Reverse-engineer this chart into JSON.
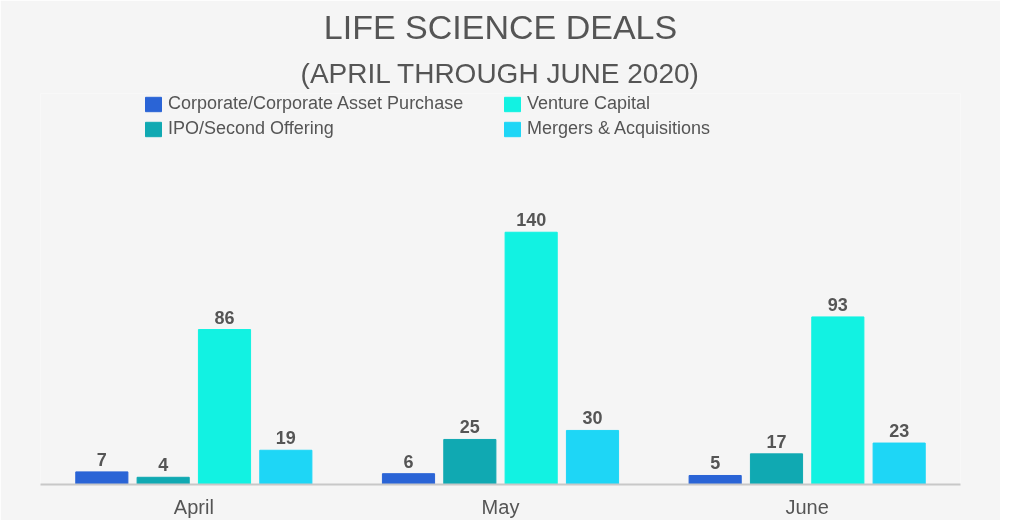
{
  "chart_data": {
    "type": "bar",
    "title": "LIFE SCIENCE DEALS",
    "subtitle": "(APRIL THROUGH JUNE 2020)",
    "categories": [
      "April",
      "May",
      "June"
    ],
    "series": [
      {
        "name": "Corporate/Corporate Asset Purchase",
        "color": "#2a64d6",
        "values": [
          7,
          6,
          5
        ]
      },
      {
        "name": "IPO/Second Offering",
        "color": "#10a9b2",
        "values": [
          4,
          25,
          17
        ]
      },
      {
        "name": "Venture Capital",
        "color": "#12f2e2",
        "values": [
          86,
          140,
          93
        ]
      },
      {
        "name": "Mergers & Acquisitions",
        "color": "#1ed6f6",
        "values": [
          19,
          30,
          23
        ]
      }
    ],
    "data_labels": true,
    "legend": "top"
  }
}
